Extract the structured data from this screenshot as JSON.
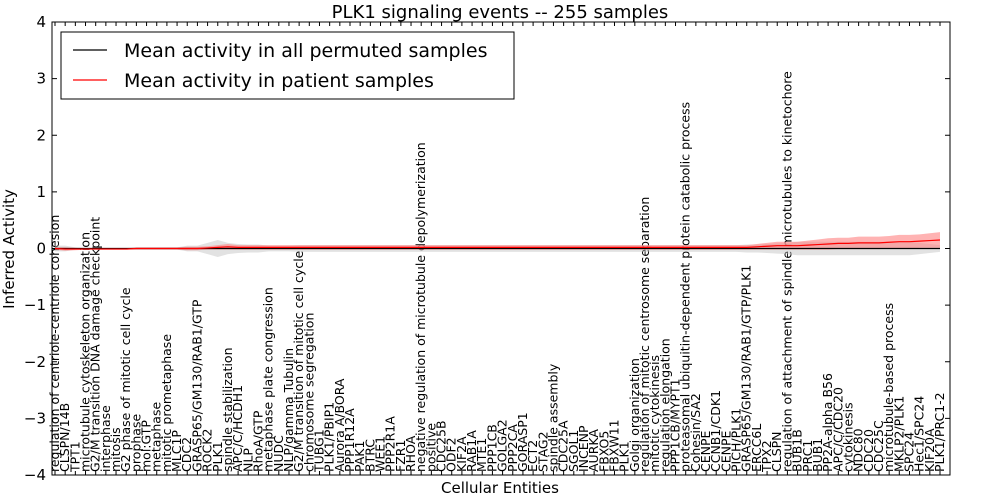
{
  "chart_data": {
    "type": "line",
    "title": "PLK1 signaling events -- 255 samples",
    "xlabel": "Cellular Entities",
    "ylabel": "Inferred Activity",
    "ylim": [
      -4,
      4
    ],
    "yticks": [
      -4,
      -3,
      -2,
      -1,
      0,
      1,
      2,
      3,
      4
    ],
    "legend_position": "top-left",
    "colors": {
      "permuted": "#000000",
      "patient": "#ff0000",
      "permuted_band": "#bfbfbf",
      "patient_band": "#ff8080"
    },
    "categories": [
      "regulation of centriole-centriole cohesion",
      "CLSPN/14B",
      "TPT1",
      "microtubule cytoskeleton organization",
      "G2/M transition DNA damage checkpoint",
      "interphase",
      "mitosis",
      "G2 phase of mitotic cell cycle",
      "prophase",
      "mol:GTP",
      "metaphase",
      "mitotic prometaphase",
      "MLC1P",
      "CDC2",
      "GRASP65/GM130/RAB1/GTP",
      "ROCK2",
      "PLK1",
      "spindle stabilization",
      "APC/C/HCDH1",
      "NLP",
      "RhoA/GTP",
      "metaphase plate congression",
      "NUDC",
      "NLP/gamma Tubulin",
      "G2/M transition of mitotic cell cycle",
      "chromosome segregation",
      "TUBG1",
      "PLK1/PBIP1",
      "Aurora A/BORA",
      "PPP1R12A",
      "PAK1",
      "BTRC",
      "WEE1",
      "PPP2R1A",
      "FZR1",
      "RHOA",
      "negative regulation of microtubule depolymerization",
      "positive",
      "CDC25B",
      "ODF2",
      "KIF2A",
      "RAB1A",
      "MTE1",
      "PPP1CB",
      "GOLGA2",
      "PPP2CA",
      "GORASP1",
      "ECT2",
      "STAG2",
      "spindle assembly",
      "CDC25A",
      "SGOL1",
      "INCENP",
      "AURKA",
      "FBXO5",
      "FBXW11",
      "PLK1",
      "Golgi organization",
      "regulation of mitotic centrosome separation",
      "mitotic cytokinesis",
      "regulation elongation",
      "PPP1CB/MYPT1",
      "proteasomal ubiquitin-dependent protein catabolic process",
      "Cohesin/SA2",
      "CENPE",
      "CCNB1/CDK1",
      "CENPE",
      "PICH/PLK1",
      "GRASP65/GM130/RAB1/GTP/PLK1",
      "ERCC6L",
      "TPX2",
      "CLSPN",
      "regulation of attachment of spindle microtubules to kinetochore",
      "BUB1B",
      "PRC1",
      "BUB1",
      "PP2A-alpha B56",
      "APC/C/CDC20",
      "cytokinesis",
      "NDC80",
      "CDC20",
      "CDC25C",
      "microtubule-based process",
      "MKLP2/PLK1",
      "SPC24",
      "Hec1/SPC24",
      "KIF20A",
      "PLK1/PRC1-2"
    ],
    "series": [
      {
        "name": "Mean activity in all permuted samples",
        "values": [
          0,
          0,
          0,
          0,
          0,
          0,
          0,
          0,
          0,
          0,
          0,
          0,
          0,
          0,
          0,
          0,
          0,
          0,
          0,
          0,
          0,
          0,
          0,
          0,
          0,
          0,
          0,
          0,
          0,
          0,
          0,
          0,
          0,
          0,
          0,
          0,
          0,
          0,
          0,
          0,
          0,
          0,
          0,
          0,
          0,
          0,
          0,
          0,
          0,
          0,
          0,
          0,
          0,
          0,
          0,
          0,
          0,
          0,
          0,
          0,
          0,
          0,
          0,
          0,
          0,
          0,
          0,
          0,
          0,
          0,
          0,
          0,
          0,
          0,
          0,
          0,
          0,
          0,
          0,
          0,
          0,
          0,
          0,
          0,
          0,
          0,
          0,
          0
        ],
        "band": [
          0.05,
          0.05,
          0.02,
          0.01,
          0.01,
          0.01,
          0.01,
          0.01,
          0.02,
          0.02,
          0.02,
          0.02,
          0.02,
          0.05,
          0.05,
          0.1,
          0.15,
          0.1,
          0.08,
          0.07,
          0.07,
          0.05,
          0.05,
          0.05,
          0.06,
          0.06,
          0.06,
          0.06,
          0.06,
          0.06,
          0.06,
          0.06,
          0.06,
          0.06,
          0.06,
          0.06,
          0.06,
          0.06,
          0.06,
          0.06,
          0.06,
          0.06,
          0.06,
          0.06,
          0.06,
          0.06,
          0.06,
          0.06,
          0.06,
          0.06,
          0.06,
          0.06,
          0.06,
          0.06,
          0.06,
          0.06,
          0.06,
          0.06,
          0.06,
          0.06,
          0.06,
          0.06,
          0.06,
          0.06,
          0.06,
          0.06,
          0.06,
          0.06,
          0.07,
          0.07,
          0.08,
          0.09,
          0.1,
          0.12,
          0.12,
          0.12,
          0.12,
          0.12,
          0.12,
          0.12,
          0.12,
          0.12,
          0.12,
          0.12,
          0.12,
          0.1,
          0.08,
          0.06
        ]
      },
      {
        "name": "Mean activity in patient samples",
        "values": [
          0,
          -0.01,
          -0.01,
          -0.01,
          -0.01,
          -0.01,
          -0.01,
          -0.01,
          0,
          0,
          0,
          0,
          0,
          0,
          0,
          0.01,
          0.02,
          0.03,
          0.02,
          0.02,
          0.02,
          0.02,
          0.02,
          0.02,
          0.02,
          0.02,
          0.02,
          0.02,
          0.02,
          0.02,
          0.02,
          0.02,
          0.02,
          0.02,
          0.02,
          0.02,
          0.02,
          0.02,
          0.02,
          0.02,
          0.02,
          0.02,
          0.02,
          0.02,
          0.02,
          0.02,
          0.02,
          0.02,
          0.02,
          0.02,
          0.02,
          0.02,
          0.02,
          0.02,
          0.02,
          0.02,
          0.02,
          0.02,
          0.02,
          0.02,
          0.02,
          0.02,
          0.02,
          0.02,
          0.02,
          0.02,
          0.02,
          0.02,
          0.02,
          0.03,
          0.04,
          0.05,
          0.05,
          0.05,
          0.06,
          0.07,
          0.08,
          0.09,
          0.09,
          0.1,
          0.1,
          0.1,
          0.11,
          0.12,
          0.12,
          0.13,
          0.14,
          0.15
        ],
        "band": [
          0.02,
          0.03,
          0.02,
          0.01,
          0.01,
          0.01,
          0.01,
          0.01,
          0.02,
          0.02,
          0.02,
          0.02,
          0.02,
          0.03,
          0.03,
          0.03,
          0.04,
          0.05,
          0.04,
          0.04,
          0.04,
          0.04,
          0.04,
          0.04,
          0.04,
          0.04,
          0.04,
          0.04,
          0.04,
          0.04,
          0.04,
          0.04,
          0.04,
          0.04,
          0.04,
          0.04,
          0.04,
          0.04,
          0.04,
          0.04,
          0.04,
          0.04,
          0.04,
          0.04,
          0.04,
          0.04,
          0.04,
          0.04,
          0.04,
          0.04,
          0.04,
          0.04,
          0.04,
          0.04,
          0.04,
          0.04,
          0.04,
          0.04,
          0.04,
          0.04,
          0.04,
          0.04,
          0.04,
          0.04,
          0.04,
          0.04,
          0.04,
          0.04,
          0.04,
          0.05,
          0.06,
          0.07,
          0.07,
          0.07,
          0.08,
          0.09,
          0.1,
          0.1,
          0.1,
          0.11,
          0.11,
          0.11,
          0.11,
          0.12,
          0.12,
          0.12,
          0.13,
          0.14
        ]
      }
    ]
  }
}
